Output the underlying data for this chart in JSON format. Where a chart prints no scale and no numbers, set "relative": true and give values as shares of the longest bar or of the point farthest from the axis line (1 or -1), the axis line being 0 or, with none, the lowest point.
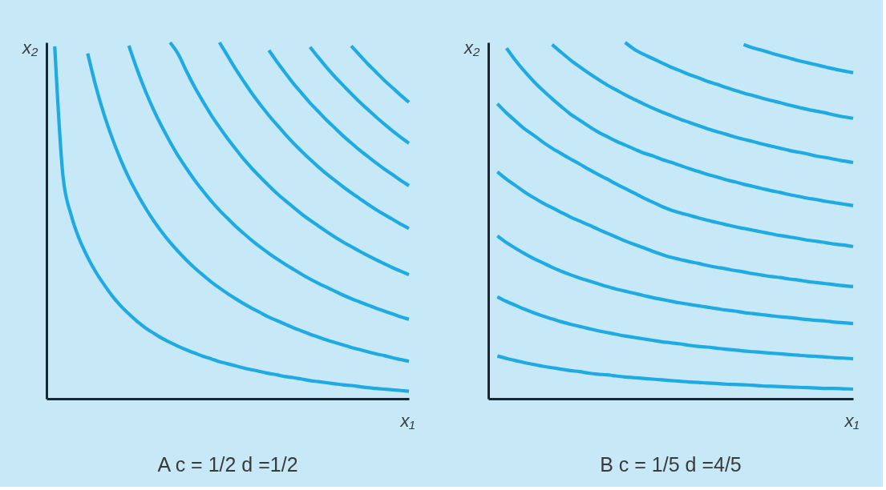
{
  "chart_data": [
    {
      "type": "line",
      "title": "A c = 1/2 d =1/2",
      "xlabel": "x₁",
      "ylabel": "x₂",
      "relative": true,
      "categories": [
        null,
        null,
        null,
        null,
        null,
        null,
        null,
        null,
        null,
        null,
        null,
        null,
        null,
        null,
        null,
        null,
        null,
        null,
        null,
        null,
        null,
        null,
        null,
        null,
        null,
        null,
        null,
        null,
        null,
        null,
        null,
        null,
        null,
        null,
        null,
        null,
        null,
        null,
        null,
        null,
        null,
        null,
        null,
        null,
        null
      ],
      "series": [
        {
          "color": "#1eaae3",
          "values": [
            null,
            0.989,
            0.625,
            0.515,
            0.447,
            0.397,
            0.355,
            0.32,
            0.288,
            0.261,
            0.238,
            0.217,
            0.199,
            0.184,
            0.17,
            0.158,
            0.147,
            0.137,
            0.128,
            0.119,
            0.112,
            0.104,
            0.098,
            0.092,
            0.086,
            0.081,
            0.076,
            0.071,
            0.067,
            0.062,
            0.059,
            0.055,
            0.051,
            0.048,
            0.045,
            0.042,
            0.039,
            0.037,
            0.034,
            0.031,
            0.029,
            0.027,
            0.025,
            0.023,
            0.021
          ]
        },
        {
          "color": "#1eaae3",
          "values": [
            null,
            null,
            null,
            null,
            null,
            0.969,
            0.876,
            0.797,
            0.73,
            0.671,
            0.62,
            0.576,
            0.536,
            0.5,
            0.468,
            0.439,
            0.413,
            0.389,
            0.367,
            0.347,
            0.328,
            0.311,
            0.295,
            0.28,
            0.266,
            0.253,
            0.241,
            0.229,
            0.219,
            0.209,
            0.199,
            0.19,
            0.181,
            0.173,
            0.165,
            0.158,
            0.151,
            0.144,
            0.138,
            0.132,
            0.126,
            0.121,
            0.115,
            0.11,
            0.105
          ]
        },
        {
          "color": "#1eaae3",
          "values": [
            null,
            null,
            null,
            null,
            null,
            null,
            null,
            null,
            null,
            null,
            0.991,
            0.924,
            0.864,
            0.811,
            0.764,
            0.721,
            0.681,
            0.646,
            0.613,
            0.583,
            0.555,
            0.529,
            0.506,
            0.483,
            0.463,
            0.443,
            0.425,
            0.408,
            0.392,
            0.377,
            0.363,
            0.349,
            0.336,
            0.324,
            0.313,
            0.302,
            0.291,
            0.281,
            0.272,
            0.263,
            0.254,
            0.246,
            0.238,
            0.23,
            0.223
          ]
        },
        {
          "color": "#1eaae3",
          "values": [
            null,
            null,
            null,
            null,
            null,
            null,
            null,
            null,
            null,
            null,
            null,
            null,
            null,
            null,
            null,
            1.0,
            0.967,
            0.919,
            0.874,
            0.834,
            0.796,
            0.762,
            0.73,
            0.7,
            0.671,
            0.645,
            0.621,
            0.598,
            0.576,
            0.556,
            0.537,
            0.518,
            0.501,
            0.485,
            0.469,
            0.454,
            0.44,
            0.427,
            0.414,
            0.402,
            0.39,
            0.379,
            0.368,
            0.358,
            0.348
          ]
        },
        {
          "color": "#1eaae3",
          "values": [
            null,
            null,
            null,
            null,
            null,
            null,
            null,
            null,
            null,
            null,
            null,
            null,
            null,
            null,
            null,
            null,
            null,
            null,
            null,
            null,
            null,
            1.0,
            0.962,
            0.924,
            0.889,
            0.855,
            0.824,
            0.795,
            0.768,
            0.742,
            0.717,
            0.694,
            0.672,
            0.651,
            0.631,
            0.613,
            0.595,
            0.578,
            0.562,
            0.546,
            0.531,
            0.517,
            0.504,
            0.49,
            0.478
          ]
        },
        {
          "color": "#1eaae3",
          "values": [
            null,
            null,
            null,
            null,
            null,
            null,
            null,
            null,
            null,
            null,
            null,
            null,
            null,
            null,
            null,
            null,
            null,
            null,
            null,
            null,
            null,
            null,
            null,
            null,
            null,
            null,
            null,
            0.978,
            0.945,
            0.914,
            0.884,
            0.857,
            0.83,
            0.806,
            0.782,
            0.76,
            0.738,
            0.718,
            0.698,
            0.68,
            0.662,
            0.645,
            0.629,
            0.613,
            0.598
          ]
        },
        {
          "color": "#1eaae3",
          "values": [
            null,
            null,
            null,
            null,
            null,
            null,
            null,
            null,
            null,
            null,
            null,
            null,
            null,
            null,
            null,
            null,
            null,
            null,
            null,
            null,
            null,
            null,
            null,
            null,
            null,
            null,
            null,
            null,
            null,
            null,
            null,
            null,
            0.987,
            0.958,
            0.93,
            0.904,
            0.88,
            0.856,
            0.833,
            0.812,
            0.791,
            0.771,
            0.752,
            0.734,
            0.717
          ]
        },
        {
          "color": "#1eaae3",
          "values": [
            null,
            null,
            null,
            null,
            null,
            null,
            null,
            null,
            null,
            null,
            null,
            null,
            null,
            null,
            null,
            null,
            null,
            null,
            null,
            null,
            null,
            null,
            null,
            null,
            null,
            null,
            null,
            null,
            null,
            null,
            null,
            null,
            null,
            null,
            null,
            null,
            null,
            0.99,
            0.965,
            0.94,
            0.917,
            0.894,
            0.873,
            0.852,
            0.832
          ]
        }
      ]
    },
    {
      "type": "line",
      "title": "B c = 1/5 d =4/5",
      "xlabel": "x₁",
      "ylabel": "x₂",
      "relative": true,
      "categories": [
        null,
        null,
        null,
        null,
        null,
        null,
        null,
        null,
        null,
        null,
        null,
        null,
        null,
        null,
        null,
        null,
        null,
        null,
        null,
        null,
        null,
        null,
        null,
        null,
        null,
        null,
        null,
        null,
        null,
        null,
        null,
        null,
        null,
        null,
        null,
        null,
        null,
        null,
        null,
        null,
        null
      ],
      "series": [
        {
          "color": "#1eaae3",
          "values": [
            null,
            0.12,
            0.113,
            0.107,
            0.101,
            0.096,
            0.091,
            0.087,
            0.083,
            0.079,
            0.076,
            0.072,
            0.069,
            0.067,
            0.064,
            0.061,
            0.059,
            0.057,
            0.055,
            0.053,
            0.051,
            0.049,
            0.047,
            0.046,
            0.044,
            0.043,
            0.041,
            0.04,
            0.039,
            0.038,
            0.036,
            0.035,
            0.034,
            0.033,
            0.032,
            0.031,
            0.03,
            0.029,
            0.029,
            0.028,
            0.027
          ]
        },
        {
          "color": "#1eaae3",
          "values": [
            null,
            0.286,
            0.273,
            0.262,
            0.251,
            0.241,
            0.232,
            0.224,
            0.216,
            0.209,
            0.203,
            0.197,
            0.191,
            0.186,
            0.181,
            0.176,
            0.172,
            0.168,
            0.164,
            0.16,
            0.157,
            0.154,
            0.15,
            0.147,
            0.145,
            0.142,
            0.139,
            0.137,
            0.134,
            0.132,
            0.13,
            0.128,
            0.126,
            0.124,
            0.122,
            0.12,
            0.119,
            0.117,
            0.115,
            0.114,
            0.112
          ]
        },
        {
          "color": "#1eaae3",
          "values": [
            null,
            0.457,
            0.438,
            0.422,
            0.407,
            0.393,
            0.381,
            0.369,
            0.358,
            0.348,
            0.339,
            0.331,
            0.323,
            0.315,
            0.308,
            0.302,
            0.296,
            0.29,
            0.284,
            0.279,
            0.274,
            0.269,
            0.265,
            0.261,
            0.257,
            0.253,
            0.249,
            0.246,
            0.242,
            0.239,
            0.236,
            0.233,
            0.23,
            0.228,
            0.225,
            0.222,
            0.22,
            0.218,
            0.215,
            0.213,
            0.211
          ]
        },
        {
          "color": "#1eaae3",
          "values": [
            null,
            0.637,
            0.616,
            0.598,
            0.58,
            0.564,
            0.549,
            0.536,
            0.523,
            0.51,
            0.499,
            0.488,
            0.476,
            0.465,
            0.454,
            0.443,
            0.433,
            0.424,
            0.414,
            0.405,
            0.397,
            0.391,
            0.385,
            0.38,
            0.374,
            0.369,
            0.365,
            0.36,
            0.356,
            0.351,
            0.347,
            0.343,
            0.34,
            0.336,
            0.333,
            0.329,
            0.326,
            0.323,
            0.32,
            0.317,
            0.315
          ]
        },
        {
          "color": "#1eaae3",
          "values": [
            null,
            0.828,
            0.802,
            0.779,
            0.757,
            0.739,
            0.72,
            0.703,
            0.688,
            0.673,
            0.659,
            0.644,
            0.63,
            0.617,
            0.603,
            0.59,
            0.577,
            0.564,
            0.552,
            0.54,
            0.53,
            0.522,
            0.515,
            0.508,
            0.501,
            0.495,
            0.489,
            0.483,
            0.478,
            0.473,
            0.468,
            0.463,
            0.458,
            0.454,
            0.45,
            0.445,
            0.442,
            0.438,
            0.434,
            0.431,
            0.427
          ]
        },
        {
          "color": "#1eaae3",
          "values": [
            null,
            null,
            0.984,
            0.949,
            0.918,
            0.89,
            0.865,
            0.842,
            0.82,
            0.799,
            0.782,
            0.765,
            0.749,
            0.736,
            0.723,
            0.712,
            0.701,
            0.69,
            0.682,
            0.672,
            0.664,
            0.655,
            0.646,
            0.638,
            0.63,
            0.623,
            0.615,
            0.609,
            0.602,
            0.596,
            0.59,
            0.584,
            0.579,
            0.573,
            0.568,
            0.563,
            0.559,
            0.554,
            0.55,
            0.546,
            0.542
          ]
        },
        {
          "color": "#1eaae3",
          "values": [
            null,
            null,
            null,
            null,
            null,
            null,
            null,
            0.994,
            0.972,
            0.951,
            0.932,
            0.914,
            0.897,
            0.881,
            0.867,
            0.853,
            0.84,
            0.828,
            0.816,
            0.805,
            0.795,
            0.785,
            0.776,
            0.767,
            0.758,
            0.75,
            0.743,
            0.735,
            0.728,
            0.722,
            0.715,
            0.709,
            0.703,
            0.697,
            0.692,
            0.687,
            0.681,
            0.677,
            0.672,
            0.667,
            0.663
          ]
        },
        {
          "color": "#1eaae3",
          "values": [
            null,
            null,
            null,
            null,
            null,
            null,
            null,
            null,
            null,
            null,
            null,
            null,
            null,
            null,
            null,
            1.0,
            0.981,
            0.967,
            0.955,
            0.943,
            0.931,
            0.921,
            0.91,
            0.901,
            0.891,
            0.883,
            0.874,
            0.866,
            0.858,
            0.851,
            0.844,
            0.837,
            0.831,
            0.824,
            0.818,
            0.812,
            0.807,
            0.802,
            0.796,
            0.791,
            0.787
          ]
        },
        {
          "color": "#1eaae3",
          "values": [
            null,
            null,
            null,
            null,
            null,
            null,
            null,
            null,
            null,
            null,
            null,
            null,
            null,
            null,
            null,
            null,
            null,
            null,
            null,
            null,
            null,
            null,
            null,
            null,
            null,
            null,
            null,
            null,
            0.994,
            0.985,
            0.978,
            0.97,
            0.963,
            0.956,
            0.949,
            0.943,
            0.937,
            0.931,
            0.925,
            0.92,
            0.915
          ]
        }
      ]
    }
  ]
}
